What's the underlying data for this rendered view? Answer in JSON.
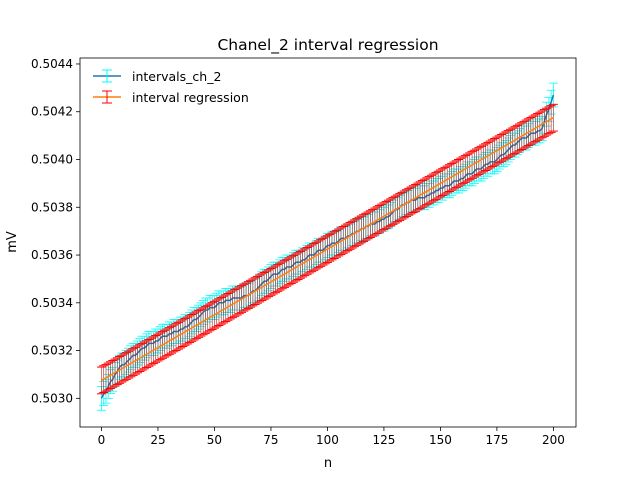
{
  "chart_data": {
    "type": "line",
    "title": "Chanel_2 interval regression",
    "xlabel": "n",
    "ylabel": "mV",
    "xlim": [
      -9.5,
      210
    ],
    "ylim": [
      0.50288,
      0.504425
    ],
    "x_ticks": [
      0,
      25,
      50,
      75,
      100,
      125,
      150,
      175,
      200
    ],
    "y_ticks": [
      0.503,
      0.5032,
      0.5034,
      0.5036,
      0.5038,
      0.504,
      0.5042,
      0.5044
    ],
    "y_tick_labels": [
      "0.5030",
      "0.5032",
      "0.5034",
      "0.5036",
      "0.5038",
      "0.5040",
      "0.5042",
      "0.5044"
    ],
    "grid": false,
    "legend_position": "top-left",
    "series": [
      {
        "name": "intervals_ch_2",
        "kind": "errorbar-step",
        "line_color": "#1f77b4",
        "errorbar_color": "#00ffff",
        "n_points": 201,
        "half_width": 5e-05,
        "anchors": [
          [
            0,
            0.503
          ],
          [
            3,
            0.50305
          ],
          [
            8,
            0.50313
          ],
          [
            12,
            0.50316
          ],
          [
            20,
            0.50322
          ],
          [
            30,
            0.50327
          ],
          [
            38,
            0.5033
          ],
          [
            45,
            0.50336
          ],
          [
            55,
            0.50341
          ],
          [
            65,
            0.50343
          ],
          [
            75,
            0.50351
          ],
          [
            85,
            0.50356
          ],
          [
            95,
            0.50361
          ],
          [
            105,
            0.50366
          ],
          [
            115,
            0.50371
          ],
          [
            125,
            0.50375
          ],
          [
            135,
            0.50382
          ],
          [
            145,
            0.50385
          ],
          [
            155,
            0.5039
          ],
          [
            165,
            0.50395
          ],
          [
            175,
            0.504
          ],
          [
            185,
            0.50408
          ],
          [
            195,
            0.50413
          ],
          [
            200,
            0.50427
          ]
        ]
      },
      {
        "name": "interval regression",
        "kind": "errorbar-line",
        "line_color": "#ff7f0e",
        "errorbar_color": "#ff0000",
        "errorbar_thin_color": "#b02020",
        "n_points": 201,
        "intercept": 0.503075,
        "slope": 5.5e-06,
        "half_width": 5.6e-05
      }
    ]
  }
}
